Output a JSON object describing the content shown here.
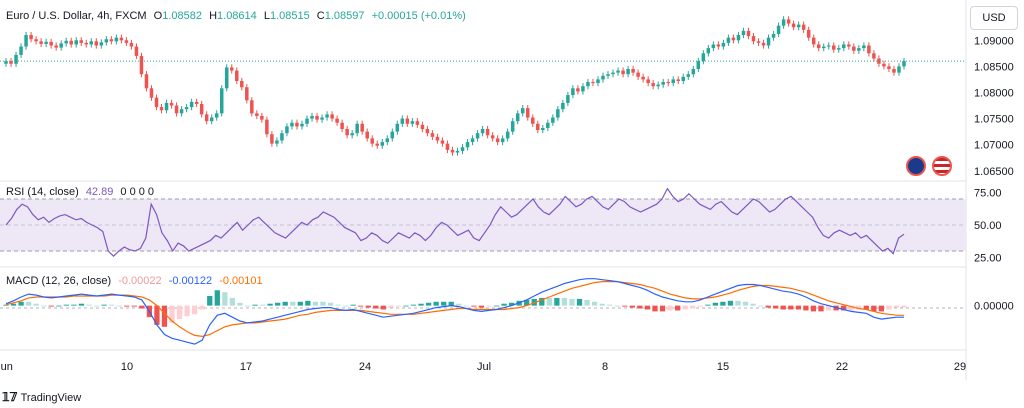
{
  "legend": {
    "symbol": "Euro / U.S. Dollar, 4h, FXCM",
    "open_label": "O",
    "open": "1.08582",
    "high_label": "H",
    "high": "1.08614",
    "low_label": "L",
    "low": "1.08515",
    "close_label": "C",
    "close": "1.08597",
    "change": "+0.00015 (+0.01%)"
  },
  "currency_button": "USD",
  "rsi_legend": {
    "label": "RSI (14, close)",
    "value": "42.89",
    "extras": "0  0  0  0"
  },
  "macd_legend": {
    "label": "MACD (12, 26, close)",
    "hist": "-0.00022",
    "macd": "-0.00122",
    "signal": "-0.00101"
  },
  "brand": "TradingView",
  "colors": {
    "up": "#26a69a",
    "down": "#ef5350",
    "rsi": "#7e57c2",
    "rsi_band": "#ede7f6",
    "macd": "#2962ff",
    "signal": "#ff6d00",
    "hist_up": "#26a69a",
    "hist_up_light": "#b2dfdb",
    "hist_down": "#ef5350",
    "hist_down_light": "#ffcdd2"
  },
  "x_ticks": [
    "Jun",
    "10",
    "17",
    "24",
    "Jul",
    "8",
    "15",
    "22",
    "29"
  ],
  "chart_data": [
    {
      "type": "candlestick",
      "title": "Euro / U.S. Dollar, 4h, FXCM",
      "y_ticks": [
        "1.09000",
        "1.08500",
        "1.08000",
        "1.07500",
        "1.07000",
        "1.06500"
      ],
      "ylim": [
        1.064,
        1.0935
      ],
      "close_series": [
        1.086,
        1.0855,
        1.0872,
        1.0888,
        1.091,
        1.0902,
        1.0898,
        1.0893,
        1.0897,
        1.089,
        1.0886,
        1.0894,
        1.0899,
        1.0892,
        1.09,
        1.0895,
        1.0892,
        1.0898,
        1.089,
        1.0896,
        1.0902,
        1.0898,
        1.0905,
        1.09,
        1.0895,
        1.0888,
        1.087,
        1.0835,
        1.0808,
        1.079,
        1.0772,
        1.0766,
        1.078,
        1.0775,
        1.076,
        1.0768,
        1.0772,
        1.0782,
        1.0778,
        1.0758,
        1.0745,
        1.0752,
        1.076,
        1.0808,
        1.0848,
        1.0842,
        1.0822,
        1.081,
        1.0785,
        1.076,
        1.0755,
        1.0748,
        1.072,
        1.0702,
        1.0708,
        1.0722,
        1.0735,
        1.0742,
        1.0735,
        1.074,
        1.075,
        1.0755,
        1.0748,
        1.0752,
        1.0758,
        1.075,
        1.0742,
        1.073,
        1.0718,
        1.0722,
        1.074,
        1.0725,
        1.0712,
        1.0702,
        1.0698,
        1.0705,
        1.0712,
        1.0725,
        1.074,
        1.075,
        1.074,
        1.0745,
        1.0738,
        1.073,
        1.0722,
        1.0715,
        1.0708,
        1.0702,
        1.069,
        1.0685,
        1.0688,
        1.0695,
        1.0705,
        1.0712,
        1.0722,
        1.073,
        1.0718,
        1.0712,
        1.0705,
        1.0712,
        1.0725,
        1.0745,
        1.076,
        1.077,
        1.0752,
        1.074,
        1.0728,
        1.0732,
        1.0742,
        1.0752,
        1.0768,
        1.078,
        1.0795,
        1.0808,
        1.0802,
        1.0812,
        1.082,
        1.0818,
        1.0825,
        1.0832,
        1.0835,
        1.0838,
        1.0842,
        1.0835,
        1.0845,
        1.0838,
        1.083,
        1.0825,
        1.0818,
        1.0812,
        1.0815,
        1.082,
        1.0818,
        1.0825,
        1.0822,
        1.083,
        1.0835,
        1.0845,
        1.086,
        1.0875,
        1.0885,
        1.0892,
        1.0888,
        1.0895,
        1.0905,
        1.09,
        1.091,
        1.0918,
        1.0908,
        1.0898,
        1.0895,
        1.089,
        1.0905,
        1.0912,
        1.0928,
        1.094,
        1.0932,
        1.0925,
        1.093,
        1.092,
        1.0905,
        1.0892,
        1.0885,
        1.0888,
        1.089,
        1.0882,
        1.0885,
        1.0892,
        1.0888,
        1.088,
        1.0885,
        1.089,
        1.0875,
        1.0865,
        1.0855,
        1.085,
        1.0845,
        1.0838,
        1.085,
        1.086
      ]
    },
    {
      "type": "line",
      "title": "RSI (14, close)",
      "y_ticks": [
        "75.00",
        "50.00",
        "25.00"
      ],
      "ylim": [
        20,
        80
      ],
      "bands": [
        30,
        70
      ],
      "series": [
        {
          "name": "RSI (14, close)",
          "values": [
            50,
            55,
            62,
            66,
            64,
            58,
            54,
            56,
            52,
            55,
            57,
            58,
            56,
            54,
            55,
            52,
            50,
            48,
            45,
            30,
            26,
            30,
            33,
            31,
            30,
            32,
            40,
            66,
            58,
            44,
            38,
            30,
            36,
            34,
            30,
            32,
            34,
            36,
            38,
            42,
            40,
            44,
            48,
            52,
            46,
            50,
            54,
            56,
            52,
            48,
            44,
            42,
            40,
            44,
            48,
            52,
            50,
            54,
            56,
            60,
            58,
            56,
            52,
            48,
            46,
            44,
            38,
            40,
            44,
            42,
            38,
            36,
            40,
            44,
            42,
            40,
            44,
            42,
            38,
            42,
            48,
            52,
            50,
            46,
            42,
            44,
            46,
            40,
            38,
            44,
            50,
            58,
            64,
            60,
            56,
            58,
            62,
            66,
            70,
            64,
            60,
            58,
            62,
            66,
            72,
            68,
            64,
            66,
            70,
            72,
            68,
            64,
            62,
            66,
            70,
            68,
            64,
            62,
            60,
            62,
            64,
            66,
            70,
            78,
            72,
            68,
            70,
            74,
            70,
            66,
            64,
            62,
            66,
            68,
            64,
            60,
            58,
            62,
            66,
            70,
            68,
            64,
            60,
            62,
            66,
            70,
            72,
            68,
            64,
            60,
            56,
            48,
            42,
            40,
            44,
            46,
            44,
            42,
            44,
            40,
            42,
            38,
            34,
            30,
            32,
            28,
            40,
            42.89
          ]
        }
      ]
    },
    {
      "type": "bar+line",
      "title": "MACD (12, 26, close)",
      "y_ticks": [
        "0.00000"
      ],
      "ylim": [
        -0.0042,
        0.0035
      ],
      "series": [
        {
          "name": "MACD",
          "values": [
            0.0002,
            0.0005,
            0.0009,
            0.0012,
            0.0011,
            0.0009,
            0.0008,
            0.0009,
            0.001,
            0.0011,
            0.0012,
            0.0011,
            0.001,
            0.0011,
            0.0012,
            0.0011,
            0.001,
            0.0009,
            0.0006,
            -0.0006,
            -0.002,
            -0.003,
            -0.0034,
            -0.0036,
            -0.0038,
            -0.004,
            -0.0036,
            -0.002,
            -0.001,
            -0.0008,
            -0.0012,
            -0.0016,
            -0.0018,
            -0.0017,
            -0.0016,
            -0.0014,
            -0.0012,
            -0.001,
            -0.0008,
            -0.0006,
            -0.0004,
            -0.0003,
            -0.0002,
            -0.0002,
            -0.0004,
            -0.0005,
            -0.0004,
            -0.0006,
            -0.0008,
            -0.001,
            -0.0012,
            -0.0011,
            -0.001,
            -0.0009,
            -0.0008,
            -0.0006,
            -0.0004,
            -0.0002,
            -0.0001,
            0.0,
            -0.0001,
            -0.0003,
            -0.0005,
            -0.0006,
            -0.0005,
            -0.0004,
            -0.0002,
            0.0,
            0.0003,
            0.0006,
            0.001,
            0.0014,
            0.0017,
            0.002,
            0.0023,
            0.0025,
            0.0027,
            0.0028,
            0.0028,
            0.0027,
            0.0026,
            0.0025,
            0.0023,
            0.0021,
            0.0019,
            0.0016,
            0.0012,
            0.0009,
            0.0007,
            0.0005,
            0.0004,
            0.0004,
            0.0006,
            0.0009,
            0.0012,
            0.0015,
            0.0018,
            0.0021,
            0.0022,
            0.0022,
            0.0021,
            0.0019,
            0.0017,
            0.0015,
            0.0014,
            0.0012,
            0.0009,
            0.0005,
            0.0002,
            0.0,
            -0.0002,
            -0.0004,
            -0.0006,
            -0.0007,
            -0.0008,
            -0.0012,
            -0.0014,
            -0.0013,
            -0.0012,
            -0.0012
          ]
        },
        {
          "name": "Signal",
          "values": [
            0.0001,
            0.0003,
            0.0005,
            0.0008,
            0.0009,
            0.0009,
            0.0009,
            0.0009,
            0.0009,
            0.001,
            0.001,
            0.001,
            0.001,
            0.001,
            0.0011,
            0.0011,
            0.0011,
            0.001,
            0.0009,
            0.0006,
            0.0,
            -0.0008,
            -0.0016,
            -0.0022,
            -0.0027,
            -0.0031,
            -0.0032,
            -0.003,
            -0.0026,
            -0.0022,
            -0.002,
            -0.0019,
            -0.0018,
            -0.0018,
            -0.0017,
            -0.0016,
            -0.0015,
            -0.0014,
            -0.0012,
            -0.001,
            -0.0009,
            -0.0007,
            -0.0006,
            -0.0005,
            -0.0005,
            -0.0005,
            -0.0005,
            -0.0005,
            -0.0006,
            -0.0007,
            -0.0008,
            -0.0009,
            -0.0009,
            -0.0009,
            -0.0009,
            -0.0008,
            -0.0007,
            -0.0006,
            -0.0005,
            -0.0004,
            -0.0003,
            -0.0003,
            -0.0004,
            -0.0004,
            -0.0004,
            -0.0004,
            -0.0004,
            -0.0003,
            -0.0002,
            0.0,
            0.0003,
            0.0006,
            0.0009,
            0.0012,
            0.0015,
            0.0018,
            0.002,
            0.0022,
            0.0024,
            0.0025,
            0.0025,
            0.0025,
            0.0024,
            0.0023,
            0.0022,
            0.002,
            0.0018,
            0.0015,
            0.0012,
            0.001,
            0.0008,
            0.0007,
            0.0007,
            0.0008,
            0.0009,
            0.0011,
            0.0013,
            0.0016,
            0.0018,
            0.002,
            0.0021,
            0.0021,
            0.002,
            0.0019,
            0.0018,
            0.0016,
            0.0014,
            0.0011,
            0.0008,
            0.0005,
            0.0003,
            0.0001,
            -0.0001,
            -0.0003,
            -0.0004,
            -0.0006,
            -0.0008,
            -0.0009,
            -0.001,
            -0.00101
          ]
        }
      ]
    }
  ]
}
